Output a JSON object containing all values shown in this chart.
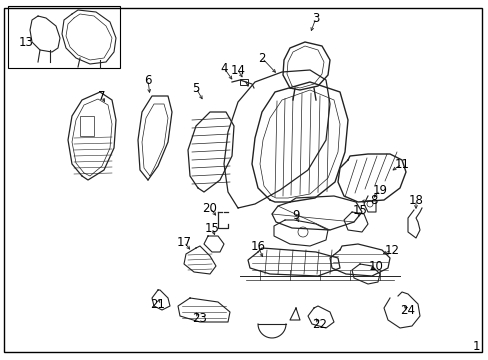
{
  "background_color": "#ffffff",
  "border_color": "#000000",
  "line_color": "#222222",
  "label_color": "#000000",
  "fig_width": 4.89,
  "fig_height": 3.6,
  "dpi": 100,
  "page_number": "1",
  "label_fontsize": 8.5
}
